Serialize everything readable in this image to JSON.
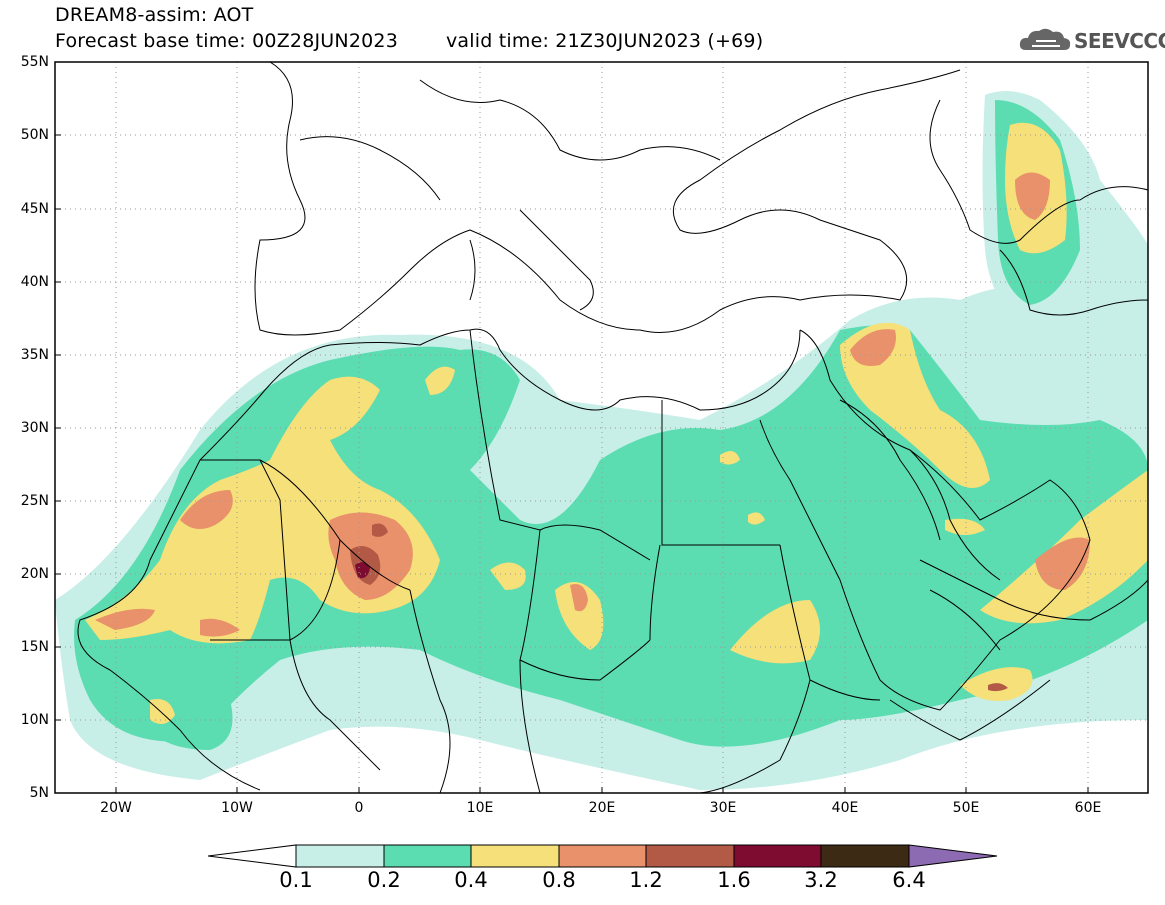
{
  "title": {
    "line1": "DREAM8-assim: AOT",
    "base_time": "Forecast base time: 00Z28JUN2023",
    "valid_time": "valid time: 21Z30JUN2023 (+69)"
  },
  "logo": {
    "text": "SEEVCCC",
    "icon": "cloud-icon"
  },
  "map": {
    "lon_range": [
      -25,
      65
    ],
    "lat_range": [
      5,
      55
    ],
    "lat_labels": [
      "55N",
      "50N",
      "45N",
      "40N",
      "35N",
      "30N",
      "25N",
      "20N",
      "15N",
      "10N",
      "5N"
    ],
    "lon_labels": [
      "20W",
      "10W",
      "0",
      "10E",
      "20E",
      "30E",
      "40E",
      "50E",
      "60E"
    ],
    "grid": "dotted"
  },
  "colorbar": {
    "labels": [
      "0.1",
      "0.2",
      "0.4",
      "0.8",
      "1.2",
      "1.6",
      "3.2",
      "6.4"
    ],
    "colors": [
      "#ffffff",
      "#c7efe8",
      "#5cdcb1",
      "#f5e07a",
      "#e8916a",
      "#b25a46",
      "#7d0c30",
      "#3c2a14",
      "#8d6bb3"
    ]
  }
}
